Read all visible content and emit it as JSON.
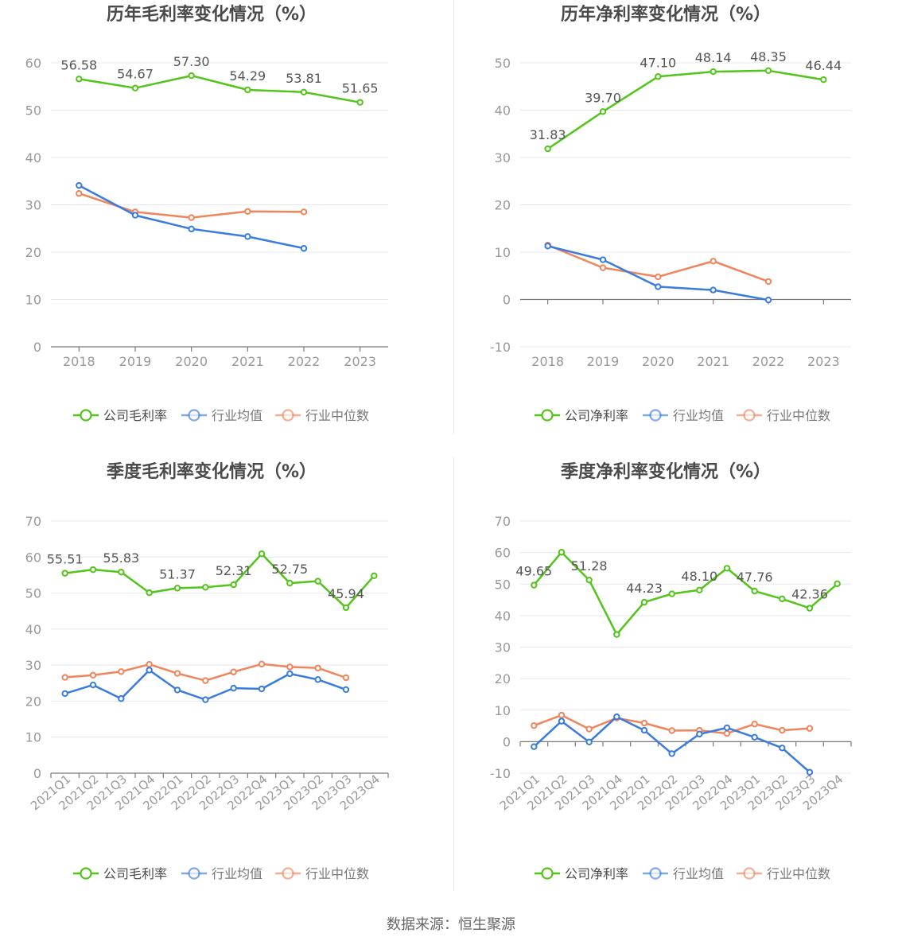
{
  "footer": {
    "source": "数据来源：恒生聚源"
  },
  "colors": {
    "company": "#52c41a",
    "industry_avg": "#3a7bdf",
    "industry_median": "#f0845a",
    "axis": "#999999",
    "grid": "#e4e8f0",
    "text": "#4a4a4a",
    "tick_text": "#999999"
  },
  "chart_data": [
    {
      "id": "annual-gross",
      "type": "line",
      "title": "历年毛利率变化情况（%）",
      "categories": [
        "2018",
        "2019",
        "2020",
        "2021",
        "2022",
        "2023"
      ],
      "ylim": [
        0,
        60
      ],
      "yticks": [
        0,
        10,
        20,
        30,
        40,
        50,
        60
      ],
      "series": [
        {
          "name": "公司毛利率",
          "key": "company",
          "values": [
            56.58,
            54.67,
            57.3,
            54.29,
            53.81,
            51.65
          ],
          "labels": [
            "56.58",
            "54.67",
            "57.30",
            "54.29",
            "53.81",
            "51.65"
          ]
        },
        {
          "name": "行业均值",
          "key": "industry_avg",
          "values": [
            34.1,
            27.8,
            24.9,
            23.3,
            20.8,
            null
          ]
        },
        {
          "name": "行业中位数",
          "key": "industry_median",
          "values": [
            32.4,
            28.5,
            27.3,
            28.6,
            28.5,
            null
          ]
        }
      ],
      "legend": [
        "公司毛利率",
        "行业均值",
        "行业中位数"
      ]
    },
    {
      "id": "annual-net",
      "type": "line",
      "title": "历年净利率变化情况（%）",
      "categories": [
        "2018",
        "2019",
        "2020",
        "2021",
        "2022",
        "2023"
      ],
      "ylim": [
        -10,
        50
      ],
      "yticks": [
        -10,
        0,
        10,
        20,
        30,
        40,
        50
      ],
      "series": [
        {
          "name": "公司净利率",
          "key": "company",
          "values": [
            31.83,
            39.7,
            47.1,
            48.14,
            48.35,
            46.44
          ],
          "labels": [
            "31.83",
            "39.70",
            "47.10",
            "48.14",
            "48.35",
            "46.44"
          ]
        },
        {
          "name": "行业均值",
          "key": "industry_avg",
          "values": [
            11.3,
            8.4,
            2.7,
            2.0,
            -0.1,
            null
          ]
        },
        {
          "name": "行业中位数",
          "key": "industry_median",
          "values": [
            11.5,
            6.7,
            4.8,
            8.1,
            3.8,
            null
          ]
        }
      ],
      "legend": [
        "公司净利率",
        "行业均值",
        "行业中位数"
      ]
    },
    {
      "id": "quarterly-gross",
      "type": "line",
      "title": "季度毛利率变化情况（%）",
      "categories": [
        "2021Q1",
        "2021Q2",
        "2021Q3",
        "2021Q4",
        "2022Q1",
        "2022Q2",
        "2022Q3",
        "2022Q4",
        "2023Q1",
        "2023Q2",
        "2023Q3",
        "2023Q4"
      ],
      "ylim": [
        0,
        70
      ],
      "yticks": [
        0,
        10,
        20,
        30,
        40,
        50,
        60,
        70
      ],
      "series": [
        {
          "name": "公司毛利率",
          "key": "company",
          "values": [
            55.51,
            56.5,
            55.83,
            50.1,
            51.37,
            51.6,
            52.31,
            60.9,
            52.75,
            53.3,
            45.94,
            54.8
          ],
          "labels": [
            "55.51",
            "",
            "55.83",
            "",
            "51.37",
            "",
            "52.31",
            "",
            "52.75",
            "",
            "45.94",
            ""
          ]
        },
        {
          "name": "行业均值",
          "key": "industry_avg",
          "values": [
            22.1,
            24.5,
            20.7,
            28.6,
            23.1,
            20.4,
            23.6,
            23.4,
            27.6,
            26.0,
            23.2,
            null
          ]
        },
        {
          "name": "行业中位数",
          "key": "industry_median",
          "values": [
            26.6,
            27.2,
            28.2,
            30.2,
            27.7,
            25.7,
            28.1,
            30.3,
            29.5,
            29.2,
            26.5,
            null
          ]
        }
      ],
      "legend": [
        "公司毛利率",
        "行业均值",
        "行业中位数"
      ]
    },
    {
      "id": "quarterly-net",
      "type": "line",
      "title": "季度净利率变化情况（%）",
      "categories": [
        "2021Q1",
        "2021Q2",
        "2021Q3",
        "2021Q4",
        "2022Q1",
        "2022Q2",
        "2022Q3",
        "2022Q4",
        "2023Q1",
        "2023Q2",
        "2023Q3",
        "2023Q4"
      ],
      "ylim": [
        -10,
        70
      ],
      "yticks": [
        -10,
        0,
        10,
        20,
        30,
        40,
        50,
        60,
        70
      ],
      "series": [
        {
          "name": "公司净利率",
          "key": "company",
          "values": [
            49.65,
            60.1,
            51.28,
            34.0,
            44.23,
            46.9,
            48.1,
            55.0,
            47.76,
            45.3,
            42.36,
            50.1
          ],
          "labels": [
            "49.65",
            "",
            "51.28",
            "",
            "44.23",
            "",
            "48.10",
            "",
            "47.76",
            "",
            "42.36",
            ""
          ]
        },
        {
          "name": "行业均值",
          "key": "industry_avg",
          "values": [
            -1.6,
            6.5,
            -0.1,
            7.9,
            3.6,
            -3.8,
            2.4,
            4.4,
            1.4,
            -2.0,
            -9.7,
            null
          ]
        },
        {
          "name": "行业中位数",
          "key": "industry_median",
          "values": [
            5.1,
            8.4,
            4.0,
            7.5,
            5.9,
            3.5,
            3.6,
            2.6,
            5.6,
            3.6,
            4.2,
            null
          ]
        }
      ],
      "legend": [
        "公司净利率",
        "行业均值",
        "行业中位数"
      ]
    }
  ]
}
